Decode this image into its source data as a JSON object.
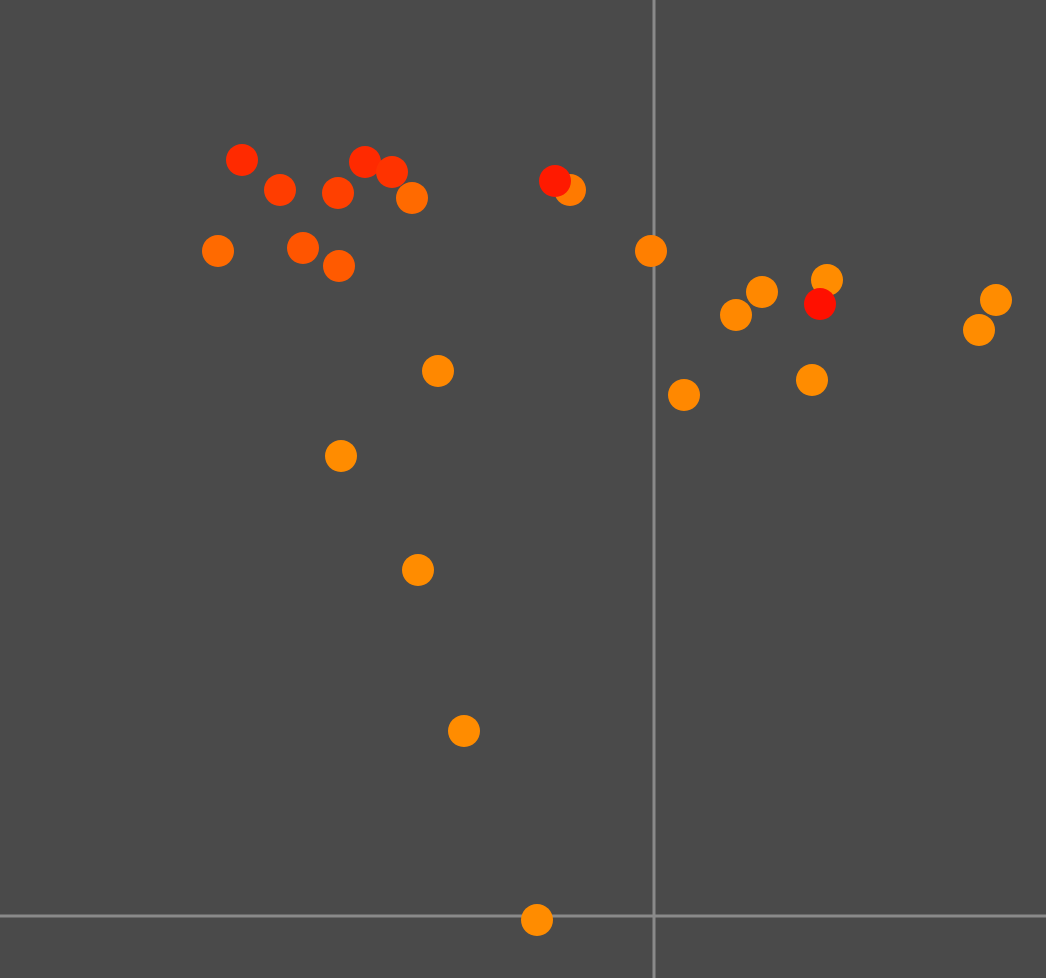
{
  "chart_data": {
    "type": "scatter",
    "x": [
      -412,
      -374,
      -316,
      -289,
      -262,
      -242,
      -84,
      -99,
      -436,
      -351,
      -315,
      -3,
      108,
      82,
      173,
      166,
      342,
      325,
      -216,
      30,
      158,
      -313,
      -236,
      -190,
      -117
    ],
    "values": [
      756,
      726,
      723,
      754,
      744,
      718,
      726,
      735,
      665,
      668,
      650,
      665,
      624,
      601,
      636,
      612,
      616,
      586,
      545,
      521,
      536,
      460,
      346,
      185,
      -4
    ],
    "colors": [
      "#ff2a00",
      "#ff3d00",
      "#ff4000",
      "#ff2a00",
      "#ff3300",
      "#ff6a00",
      "#ff7a00",
      "#ff1a00",
      "#ff6a00",
      "#ff5500",
      "#ff5a00",
      "#ff7f00",
      "#ff8800",
      "#ff8800",
      "#ff8c00",
      "#ff1000",
      "#ff8c00",
      "#ff8c00",
      "#ff8800",
      "#ff8800",
      "#ff8c00",
      "#ff8c00",
      "#ff8c00",
      "#ff8c00",
      "#ff8c00"
    ],
    "xlim": [
      -654,
      392
    ],
    "ylim": [
      -62,
      916
    ],
    "reference_lines": {
      "x": 0,
      "y": 0
    }
  }
}
